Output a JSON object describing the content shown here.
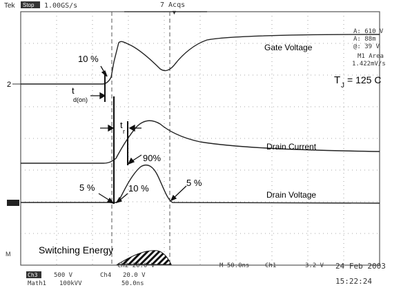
{
  "scope_header": {
    "brand": "Tek",
    "run_state": "Stop",
    "sample_rate": "1.00GS/s",
    "acquisitions": "7 Acqs"
  },
  "trace_labels": {
    "gate": "Gate Voltage",
    "current": "Drain Current",
    "voltage": "Drain Voltage"
  },
  "annotations": {
    "pct10_top": "10 %",
    "td_main": "t",
    "td_sub": "d(on)",
    "tr_main": "t",
    "tr_sub": "r",
    "pct90": "90%",
    "pct5_left": "5 %",
    "pct10_bottom": "10 %",
    "pct5_right": "5 %",
    "switching_energy": "Switching Energy",
    "tj_main": "T",
    "tj_sub": "J",
    "tj_value": "= 125 C"
  },
  "cursor_readout": {
    "line1": "A: 610 V",
    "line2": "A: 88m",
    "line3": "@: 39 V",
    "line4": "M1 Area",
    "line5": "1.422mV/s"
  },
  "footer": {
    "ch3_tag": "Ch3",
    "ch3_scale": "500 V",
    "ch4_tag": "Ch4",
    "ch4_scale": "20.0 V",
    "ch2_scale": "Ch2   20.0 V",
    "timebase": "M 50.0ns",
    "trigger": "Ch1",
    "trigger_level": "3.2 V",
    "math_label": "Math1",
    "math_scale": "100kVV",
    "math_time": "50.0ns",
    "date": "24 Feb 2003",
    "time": "15:22:24"
  },
  "markers": {
    "ch2": "2",
    "math": "M"
  }
}
